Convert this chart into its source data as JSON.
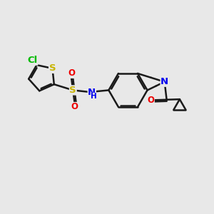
{
  "background_color": "#e8e8e8",
  "bond_color": "#1a1a1a",
  "bond_width": 1.8,
  "atom_colors": {
    "S": "#c8b400",
    "N": "#0000ee",
    "O": "#ee0000",
    "Cl": "#00bb00",
    "C": "#1a1a1a"
  },
  "font_size": 8.5,
  "figsize": [
    3.0,
    3.0
  ],
  "dpi": 100,
  "xlim": [
    0,
    10
  ],
  "ylim": [
    0,
    10
  ]
}
